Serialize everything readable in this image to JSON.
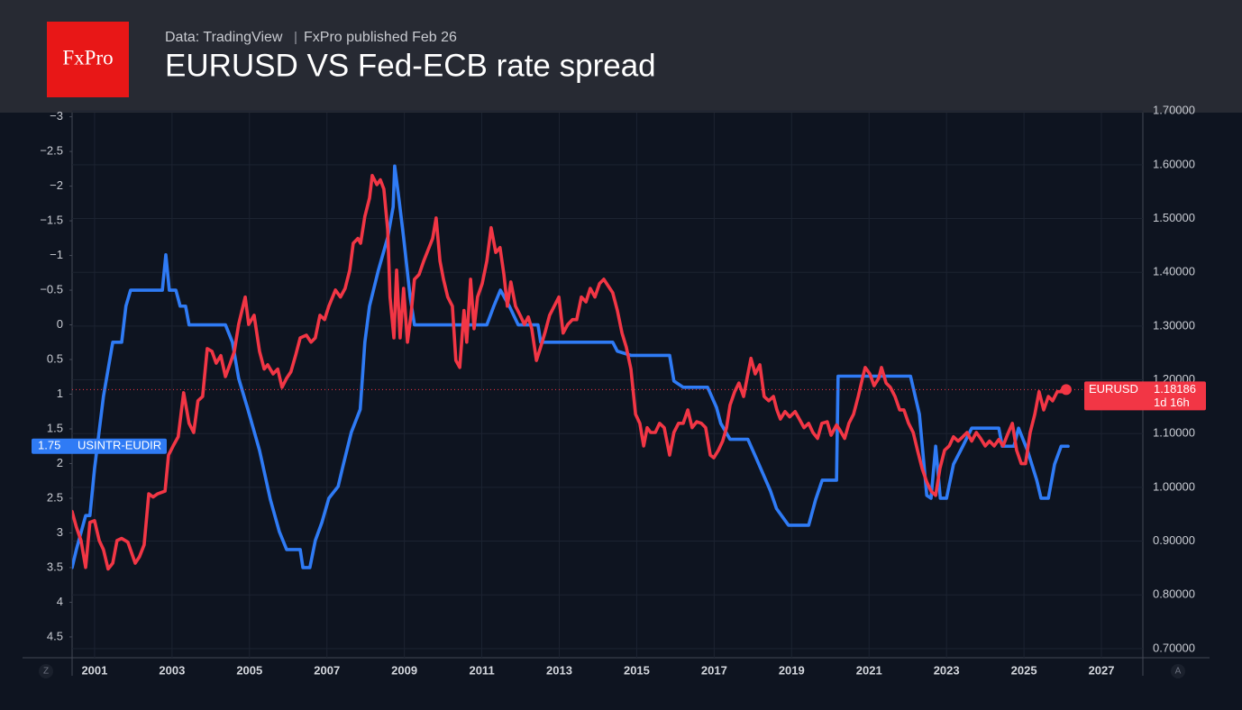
{
  "chart_data": {
    "type": "line",
    "logo": "FxPro",
    "source": "Data: TradingView",
    "published": "FxPro published Feb 26",
    "title": "EURUSD VS Fed-ECB rate spread",
    "countdown": "1d 16h",
    "scale_buttons": [
      "Z",
      "A"
    ],
    "xlim": [
      2000.42,
      2028.07
    ],
    "xticks": [
      2001,
      2003,
      2005,
      2007,
      2009,
      2011,
      2013,
      2015,
      2017,
      2019,
      2021,
      2023,
      2025,
      2027
    ],
    "ylim": [
      4.8,
      -3.06
    ],
    "yticks": [
      {
        "value": -3,
        "label": "−3"
      },
      {
        "value": -2.5,
        "label": "−2.5"
      },
      {
        "value": -2,
        "label": "−2"
      },
      {
        "value": -1.5,
        "label": "−1.5"
      },
      {
        "value": -1,
        "label": "−1"
      },
      {
        "value": -0.5,
        "label": "−0.5"
      },
      0,
      0.5,
      1,
      1.5,
      2,
      2.5,
      3,
      3.5,
      4,
      4.5
    ],
    "y2lim": [
      0.683,
      1.697
    ],
    "y2ticks": [
      {
        "value": 0.7,
        "label": "0.70000"
      },
      {
        "value": 0.8,
        "label": "0.80000"
      },
      {
        "value": 0.9,
        "label": "0.90000"
      },
      {
        "value": 1.0,
        "label": "1.00000"
      },
      {
        "value": 1.1,
        "label": "1.10000"
      },
      {
        "value": 1.2,
        "label": "1.20000"
      },
      {
        "value": 1.3,
        "label": "1.30000"
      },
      {
        "value": 1.4,
        "label": "1.40000"
      },
      {
        "value": 1.5,
        "label": "1.50000"
      },
      {
        "value": 1.6,
        "label": "1.60000"
      },
      {
        "value": 1.7,
        "label": "1.70000"
      }
    ],
    "grid": true,
    "series": [
      {
        "name": "USINTR-EUDIR",
        "color": "#2f7bf5",
        "axis": "y",
        "x": [
          2000.42,
          2000.53,
          2000.77,
          2000.88,
          2001.0,
          2001.23,
          2001.47,
          2001.7,
          2001.81,
          2001.93,
          2002.75,
          2002.84,
          2002.93,
          2003.1,
          2003.21,
          2003.35,
          2003.44,
          2004.38,
          2004.56,
          2004.72,
          2004.96,
          2005.26,
          2005.54,
          2005.77,
          2005.96,
          2006.31,
          2006.38,
          2006.56,
          2006.7,
          2006.87,
          2007.05,
          2007.29,
          2007.4,
          2007.63,
          2007.86,
          2007.98,
          2008.1,
          2008.33,
          2008.57,
          2008.71,
          2008.75,
          2008.87,
          2008.98,
          2009.15,
          2009.26,
          2011.13,
          2011.31,
          2011.48,
          2011.71,
          2011.94,
          2012.45,
          2012.52,
          2014.38,
          2014.5,
          2014.85,
          2015.85,
          2015.96,
          2016.2,
          2016.83,
          2017.06,
          2017.17,
          2017.41,
          2017.87,
          2018.1,
          2018.45,
          2018.61,
          2018.92,
          2019.44,
          2019.62,
          2019.79,
          2020.16,
          2020.2,
          2022.07,
          2022.3,
          2022.49,
          2022.6,
          2022.72,
          2022.84,
          2023.0,
          2023.18,
          2023.42,
          2023.65,
          2024.35,
          2024.44,
          2024.74,
          2024.86,
          2025.09,
          2025.33,
          2025.44,
          2025.63,
          2025.79,
          2025.96,
          2026.14
        ],
        "values": [
          3.5,
          3.24,
          2.75,
          2.75,
          2.07,
          1.03,
          0.25,
          0.25,
          -0.27,
          -0.5,
          -0.5,
          -1.01,
          -0.5,
          -0.5,
          -0.27,
          -0.27,
          0,
          0,
          0.25,
          0.77,
          1.22,
          1.81,
          2.52,
          2.98,
          3.24,
          3.24,
          3.5,
          3.5,
          3.11,
          2.85,
          2.5,
          2.33,
          2.07,
          1.55,
          1.22,
          0.25,
          -0.27,
          -0.79,
          -1.26,
          -1.7,
          -2.29,
          -1.77,
          -1.26,
          -0.4,
          0,
          0,
          -0.27,
          -0.5,
          -0.27,
          0,
          0,
          0.25,
          0.25,
          0.38,
          0.44,
          0.44,
          0.81,
          0.9,
          0.9,
          1.19,
          1.42,
          1.65,
          1.65,
          1.94,
          2.39,
          2.65,
          2.89,
          2.89,
          2.52,
          2.24,
          2.24,
          0.74,
          0.74,
          1.29,
          2.46,
          2.5,
          1.75,
          2.5,
          2.5,
          2.01,
          1.75,
          1.49,
          1.49,
          1.75,
          1.75,
          1.49,
          1.81,
          2.24,
          2.5,
          2.5,
          2.01,
          1.75,
          1.75
        ]
      },
      {
        "name": "EURUSD",
        "color": "#f23645",
        "axis": "y2",
        "x": [
          2000.42,
          2000.53,
          2000.65,
          2000.77,
          2000.88,
          2001.0,
          2001.12,
          2001.23,
          2001.35,
          2001.47,
          2001.58,
          2001.7,
          2001.86,
          2002.05,
          2002.16,
          2002.28,
          2002.4,
          2002.51,
          2002.63,
          2002.82,
          2002.91,
          2003.03,
          2003.16,
          2003.3,
          2003.44,
          2003.56,
          2003.67,
          2003.79,
          2003.91,
          2004.03,
          2004.14,
          2004.26,
          2004.38,
          2004.49,
          2004.61,
          2004.72,
          2004.89,
          2004.98,
          2005.12,
          2005.26,
          2005.38,
          2005.47,
          2005.61,
          2005.73,
          2005.84,
          2005.96,
          2006.07,
          2006.19,
          2006.31,
          2006.47,
          2006.59,
          2006.7,
          2006.82,
          2006.94,
          2007.05,
          2007.22,
          2007.35,
          2007.47,
          2007.59,
          2007.68,
          2007.8,
          2007.87,
          2007.98,
          2008.1,
          2008.17,
          2008.29,
          2008.38,
          2008.47,
          2008.57,
          2008.63,
          2008.73,
          2008.8,
          2008.89,
          2008.98,
          2009.08,
          2009.17,
          2009.26,
          2009.38,
          2009.5,
          2009.61,
          2009.73,
          2009.82,
          2009.92,
          2010.01,
          2010.12,
          2010.24,
          2010.33,
          2010.43,
          2010.54,
          2010.61,
          2010.71,
          2010.8,
          2010.89,
          2011.01,
          2011.13,
          2011.24,
          2011.36,
          2011.47,
          2011.57,
          2011.66,
          2011.75,
          2011.87,
          2011.99,
          2012.1,
          2012.2,
          2012.29,
          2012.41,
          2012.52,
          2012.64,
          2012.75,
          2012.87,
          2012.99,
          2013.1,
          2013.22,
          2013.34,
          2013.45,
          2013.57,
          2013.69,
          2013.8,
          2013.92,
          2014.04,
          2014.15,
          2014.27,
          2014.38,
          2014.5,
          2014.62,
          2014.73,
          2014.85,
          2014.97,
          2015.08,
          2015.18,
          2015.27,
          2015.36,
          2015.48,
          2015.59,
          2015.71,
          2015.85,
          2015.96,
          2016.08,
          2016.2,
          2016.32,
          2016.43,
          2016.55,
          2016.67,
          2016.78,
          2016.9,
          2016.99,
          2017.11,
          2017.22,
          2017.32,
          2017.41,
          2017.53,
          2017.64,
          2017.76,
          2017.85,
          2017.95,
          2018.06,
          2018.18,
          2018.29,
          2018.41,
          2018.53,
          2018.62,
          2018.71,
          2018.83,
          2018.95,
          2019.09,
          2019.2,
          2019.32,
          2019.44,
          2019.55,
          2019.67,
          2019.78,
          2019.92,
          2020.02,
          2020.16,
          2020.25,
          2020.37,
          2020.48,
          2020.6,
          2020.72,
          2020.83,
          2020.9,
          2021.02,
          2021.13,
          2021.25,
          2021.32,
          2021.44,
          2021.55,
          2021.67,
          2021.79,
          2021.9,
          2022.02,
          2022.14,
          2022.25,
          2022.37,
          2022.49,
          2022.6,
          2022.72,
          2022.83,
          2022.95,
          2023.07,
          2023.18,
          2023.3,
          2023.42,
          2023.53,
          2023.65,
          2023.77,
          2023.88,
          2024.0,
          2024.11,
          2024.23,
          2024.35,
          2024.46,
          2024.58,
          2024.7,
          2024.81,
          2024.93,
          2025.04,
          2025.16,
          2025.28,
          2025.39,
          2025.51,
          2025.63,
          2025.74,
          2025.86,
          2025.98,
          2026.09
        ],
        "values": [
          0.955,
          0.926,
          0.901,
          0.851,
          0.935,
          0.938,
          0.901,
          0.884,
          0.848,
          0.859,
          0.901,
          0.905,
          0.898,
          0.859,
          0.871,
          0.893,
          0.988,
          0.982,
          0.988,
          0.993,
          1.06,
          1.077,
          1.094,
          1.176,
          1.119,
          1.102,
          1.161,
          1.169,
          1.258,
          1.253,
          1.231,
          1.245,
          1.206,
          1.228,
          1.253,
          1.303,
          1.354,
          1.303,
          1.32,
          1.253,
          1.22,
          1.228,
          1.211,
          1.22,
          1.186,
          1.203,
          1.215,
          1.245,
          1.278,
          1.283,
          1.27,
          1.278,
          1.32,
          1.312,
          1.337,
          1.367,
          1.354,
          1.37,
          1.404,
          1.454,
          1.463,
          1.454,
          1.504,
          1.538,
          1.58,
          1.563,
          1.572,
          1.555,
          1.479,
          1.354,
          1.278,
          1.404,
          1.278,
          1.37,
          1.27,
          1.32,
          1.387,
          1.396,
          1.421,
          1.441,
          1.463,
          1.501,
          1.421,
          1.387,
          1.354,
          1.337,
          1.236,
          1.223,
          1.329,
          1.27,
          1.387,
          1.295,
          1.354,
          1.379,
          1.421,
          1.483,
          1.437,
          1.446,
          1.396,
          1.337,
          1.382,
          1.337,
          1.32,
          1.303,
          1.317,
          1.295,
          1.236,
          1.261,
          1.29,
          1.32,
          1.337,
          1.354,
          1.287,
          1.303,
          1.312,
          1.312,
          1.354,
          1.345,
          1.37,
          1.354,
          1.379,
          1.387,
          1.374,
          1.362,
          1.329,
          1.287,
          1.261,
          1.22,
          1.136,
          1.119,
          1.077,
          1.111,
          1.102,
          1.102,
          1.119,
          1.111,
          1.06,
          1.102,
          1.119,
          1.119,
          1.144,
          1.111,
          1.122,
          1.119,
          1.111,
          1.06,
          1.055,
          1.069,
          1.086,
          1.111,
          1.153,
          1.178,
          1.194,
          1.169,
          1.203,
          1.24,
          1.211,
          1.228,
          1.169,
          1.161,
          1.169,
          1.144,
          1.127,
          1.141,
          1.131,
          1.141,
          1.127,
          1.111,
          1.119,
          1.102,
          1.091,
          1.119,
          1.122,
          1.097,
          1.116,
          1.106,
          1.091,
          1.119,
          1.136,
          1.169,
          1.203,
          1.223,
          1.211,
          1.189,
          1.203,
          1.223,
          1.194,
          1.186,
          1.169,
          1.144,
          1.144,
          1.119,
          1.102,
          1.069,
          1.035,
          1.01,
          0.993,
          0.985,
          1.035,
          1.069,
          1.077,
          1.094,
          1.086,
          1.094,
          1.102,
          1.086,
          1.102,
          1.091,
          1.077,
          1.086,
          1.077,
          1.089,
          1.077,
          1.099,
          1.119,
          1.069,
          1.044,
          1.044,
          1.102,
          1.136,
          1.178,
          1.144,
          1.169,
          1.161,
          1.178,
          1.178,
          1.18186
        ]
      }
    ]
  }
}
